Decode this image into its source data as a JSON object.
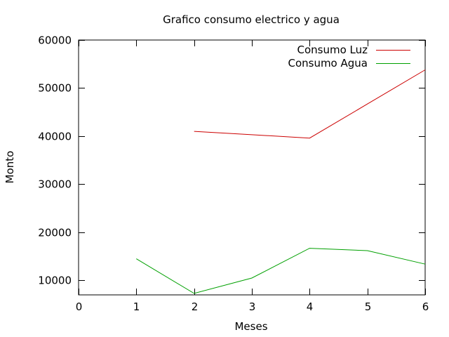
{
  "chart_data": {
    "type": "line",
    "title": "Grafico consumo electrico y agua",
    "xlabel": "Meses",
    "ylabel": "Monto",
    "xlim": [
      0,
      6
    ],
    "ylim": [
      7000,
      60000
    ],
    "x_ticks": [
      0,
      1,
      2,
      3,
      4,
      5,
      6
    ],
    "y_ticks": [
      10000,
      20000,
      30000,
      40000,
      50000,
      60000
    ],
    "grid": false,
    "legend_position": "top-right",
    "series": [
      {
        "name": "Consumo Luz",
        "color": "#cc0000",
        "points": [
          [
            2,
            41000
          ],
          [
            3,
            40300
          ],
          [
            4,
            39600
          ],
          [
            5,
            46700
          ],
          [
            6,
            53800
          ]
        ]
      },
      {
        "name": "Consumo Agua",
        "color": "#00a000",
        "points": [
          [
            1,
            14500
          ],
          [
            2,
            7300
          ],
          [
            3,
            10500
          ],
          [
            4,
            16700
          ],
          [
            5,
            16200
          ],
          [
            6,
            13400
          ]
        ]
      }
    ]
  }
}
